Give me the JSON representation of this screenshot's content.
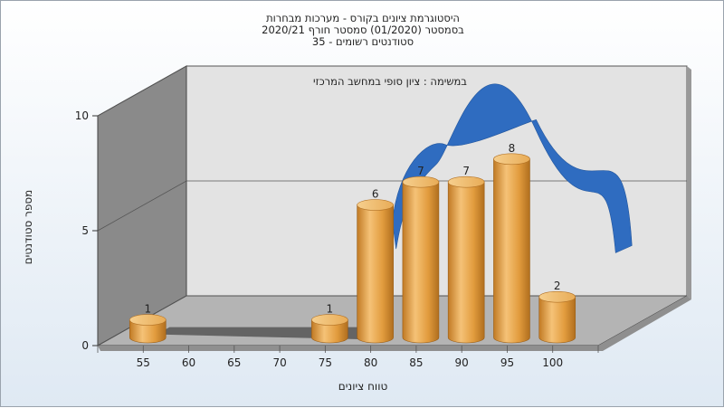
{
  "title_lines": [
    "היסטוגרמת ציונים בקורס - מערכות מבחרות",
    "בסמסטר  (01/2020)  סמסטר חורף  2020/21",
    "סטודנטים רשומים - 35"
  ],
  "chart_data": {
    "type": "bar",
    "categories": [
      "55",
      "60",
      "65",
      "70",
      "75",
      "80",
      "85",
      "90",
      "95",
      "100"
    ],
    "series": [
      {
        "values": [
          1,
          0,
          0,
          0,
          1,
          6,
          7,
          7,
          8,
          2
        ]
      }
    ],
    "xlabel": "טווח ציונים",
    "ylabel": "מספר סטודנטים",
    "ylim": [
      0,
      10
    ],
    "yticks": [
      0,
      5,
      10
    ],
    "annotation": "במשימה : ציון סופי במחשב המרכזי",
    "bar_color": "#e7a74a",
    "curve_color": "#2f6cc0"
  }
}
